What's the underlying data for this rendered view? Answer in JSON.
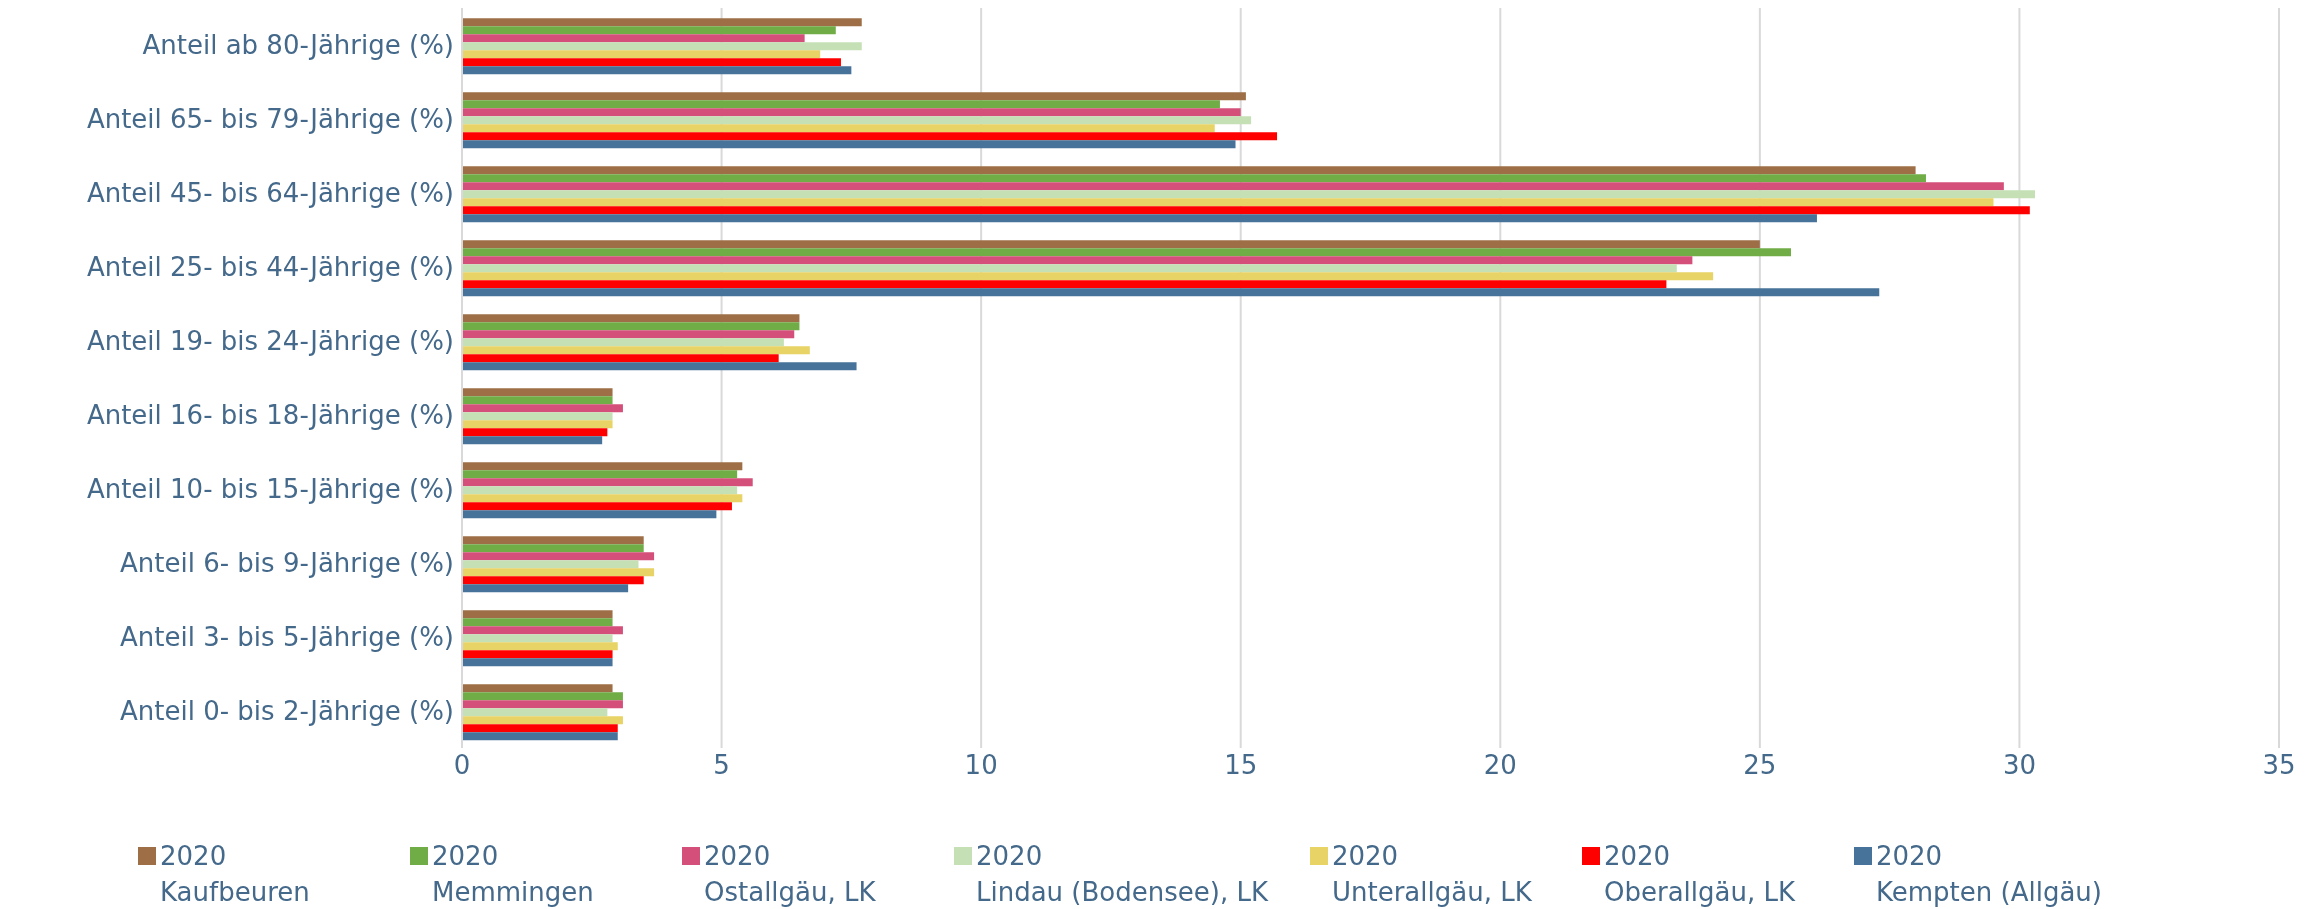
{
  "chart_data": {
    "type": "bar",
    "orientation": "horizontal",
    "categories": [
      "Anteil ab 80-Jährige (%)",
      "Anteil 65- bis 79-Jährige (%)",
      "Anteil 45- bis 64-Jährige (%)",
      "Anteil 25- bis 44-Jährige (%)",
      "Anteil 19- bis 24-Jährige (%)",
      "Anteil 16- bis 18-Jährige (%)",
      "Anteil 10- bis 15-Jährige (%)",
      "Anteil 6- bis 9-Jährige (%)",
      "Anteil 3- bis 5-Jährige (%)",
      "Anteil 0- bis 2-Jährige (%)"
    ],
    "series": [
      {
        "name": "2020 Kaufbeuren",
        "color": "#9e6f46",
        "values": [
          7.7,
          15.1,
          28.0,
          25.0,
          6.5,
          2.9,
          5.4,
          3.5,
          2.9,
          2.9
        ]
      },
      {
        "name": "2020 Memmingen",
        "color": "#70ad47",
        "values": [
          7.2,
          14.6,
          28.2,
          25.6,
          6.5,
          2.9,
          5.3,
          3.5,
          2.9,
          3.1
        ]
      },
      {
        "name": "2020 Ostallgäu, LK",
        "color": "#d4507a",
        "values": [
          6.6,
          15.0,
          29.7,
          23.7,
          6.4,
          3.1,
          5.6,
          3.7,
          3.1,
          3.1
        ]
      },
      {
        "name": "2020 Lindau (Bodensee), LK",
        "color": "#c5e0b4",
        "values": [
          7.7,
          15.2,
          30.3,
          23.4,
          6.2,
          2.9,
          5.3,
          3.4,
          2.9,
          2.8
        ]
      },
      {
        "name": "2020 Unterallgäu, LK",
        "color": "#e7d366",
        "values": [
          6.9,
          14.5,
          29.5,
          24.1,
          6.7,
          2.9,
          5.4,
          3.7,
          3.0,
          3.1
        ]
      },
      {
        "name": "2020 Oberallgäu, LK",
        "color": "#ff0000",
        "values": [
          7.3,
          15.7,
          30.2,
          23.2,
          6.1,
          2.8,
          5.2,
          3.5,
          2.9,
          3.0
        ]
      },
      {
        "name": "2020 Kempten (Allgäu)",
        "color": "#47739a",
        "values": [
          7.5,
          14.9,
          26.1,
          27.3,
          7.6,
          2.7,
          4.9,
          3.2,
          2.9,
          3.0
        ]
      }
    ],
    "xlim": [
      0,
      35
    ],
    "xticks": [
      0,
      5,
      10,
      15,
      20,
      25,
      30,
      35
    ],
    "grid": "x",
    "legend": "bottom"
  }
}
